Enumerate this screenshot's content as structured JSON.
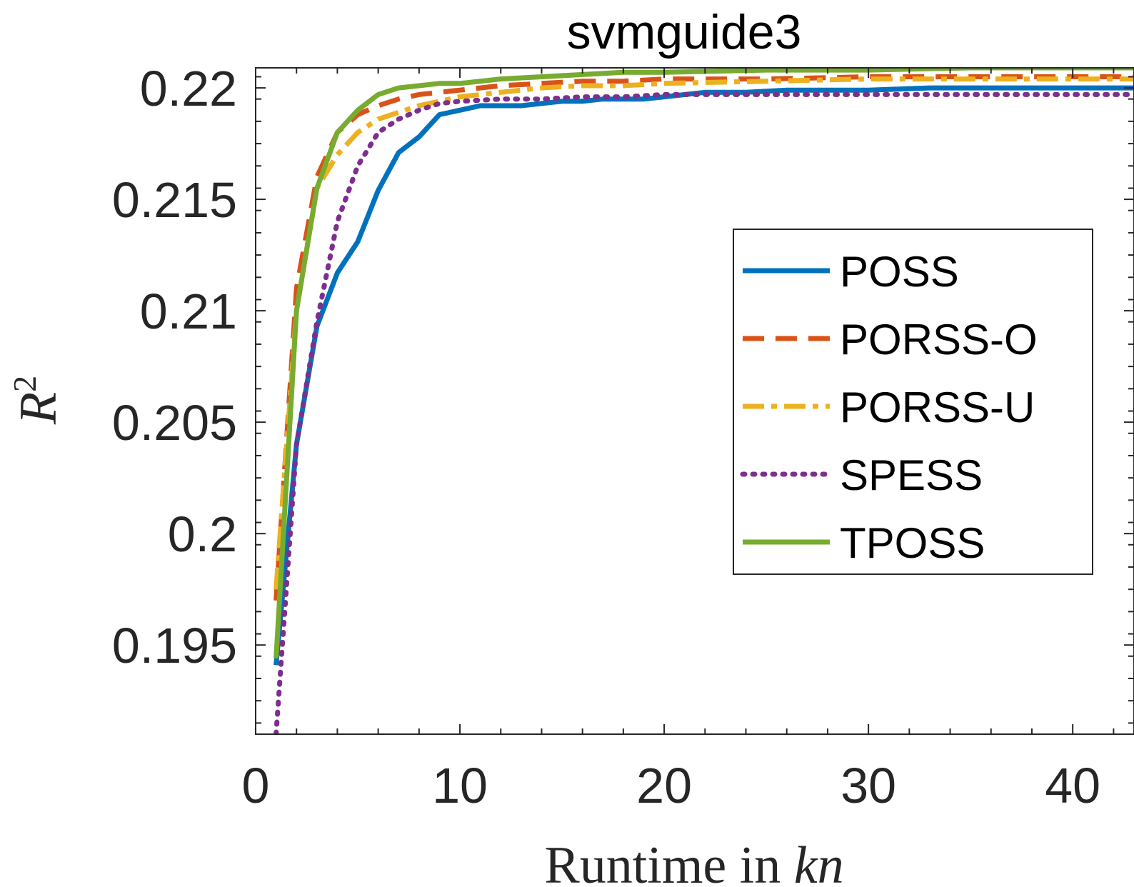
{
  "chart_data": {
    "type": "line",
    "title": "svmguide3",
    "xlabel": "Runtime in kn",
    "xlabel_plain": "Runtime in ",
    "xlabel_italic": "kn",
    "ylabel_base": "R",
    "ylabel_sup": "2",
    "xlim": [
      0,
      43
    ],
    "ylim": [
      0.191,
      0.2209
    ],
    "xticks": [
      0,
      10,
      20,
      30,
      40
    ],
    "xtick_labels": [
      "0",
      "10",
      "20",
      "30",
      "40"
    ],
    "yticks": [
      0.195,
      0.2,
      0.205,
      0.21,
      0.215,
      0.22
    ],
    "ytick_labels": [
      "0.195",
      "0.2",
      "0.205",
      "0.21",
      "0.215",
      "0.22"
    ],
    "grid": false,
    "legend_position": "right",
    "series": [
      {
        "name": "POSS",
        "color": "#0072BD",
        "dash": "solid",
        "x": [
          1,
          2,
          3,
          4,
          5,
          6,
          7,
          8,
          9,
          10,
          11,
          12,
          13,
          14,
          15,
          16,
          17,
          18,
          19,
          20,
          22,
          24,
          26,
          28,
          30,
          33,
          36,
          40,
          43
        ],
        "y": [
          0.1941,
          0.204,
          0.2093,
          0.2117,
          0.2131,
          0.2154,
          0.2171,
          0.2178,
          0.2188,
          0.219,
          0.2192,
          0.2192,
          0.2192,
          0.2193,
          0.2194,
          0.2194,
          0.2195,
          0.2195,
          0.2195,
          0.2196,
          0.2198,
          0.2198,
          0.2199,
          0.2199,
          0.2199,
          0.22,
          0.22,
          0.22,
          0.22
        ]
      },
      {
        "name": "PORSS-O",
        "color": "#D95319",
        "dash": "dash",
        "x": [
          1,
          2,
          3,
          4,
          5,
          6,
          7,
          8,
          9,
          10,
          12,
          14,
          16,
          18,
          20,
          25,
          30,
          35,
          40,
          43
        ],
        "y": [
          0.197,
          0.211,
          0.216,
          0.218,
          0.2188,
          0.2192,
          0.2195,
          0.2197,
          0.2198,
          0.2199,
          0.2201,
          0.2202,
          0.2203,
          0.2203,
          0.2204,
          0.2204,
          0.2205,
          0.2205,
          0.2205,
          0.2205
        ]
      },
      {
        "name": "PORSS-U",
        "color": "#EDB120",
        "dash": "dashdot",
        "x": [
          1,
          2,
          3,
          4,
          5,
          6,
          7,
          8,
          9,
          10,
          12,
          14,
          16,
          18,
          20,
          25,
          30,
          35,
          40,
          43
        ],
        "y": [
          0.1975,
          0.21,
          0.2155,
          0.217,
          0.218,
          0.2186,
          0.2189,
          0.2192,
          0.2194,
          0.2196,
          0.2198,
          0.22,
          0.2201,
          0.2201,
          0.2202,
          0.2203,
          0.2204,
          0.2204,
          0.2204,
          0.2204
        ]
      },
      {
        "name": "SPESS",
        "color": "#7E2F8E",
        "dash": "dot",
        "x": [
          1,
          2,
          3,
          4,
          5,
          6,
          7,
          8,
          9,
          10,
          12,
          14,
          16,
          18,
          20,
          25,
          30,
          35,
          40,
          43
        ],
        "y": [
          0.191,
          0.204,
          0.2095,
          0.214,
          0.2165,
          0.218,
          0.2186,
          0.219,
          0.2193,
          0.2194,
          0.2195,
          0.2195,
          0.2196,
          0.2196,
          0.2197,
          0.2197,
          0.2197,
          0.2197,
          0.2197,
          0.2197
        ]
      },
      {
        "name": "TPOSS",
        "color": "#77AC30",
        "dash": "solid",
        "x": [
          1,
          2,
          3,
          4,
          5,
          6,
          7,
          8,
          9,
          10,
          12,
          14,
          16,
          18,
          20,
          25,
          30,
          35,
          40,
          43
        ],
        "y": [
          0.1944,
          0.21,
          0.2155,
          0.218,
          0.219,
          0.2197,
          0.22,
          0.2201,
          0.2202,
          0.2202,
          0.2204,
          0.2205,
          0.2206,
          0.2207,
          0.2207,
          0.2208,
          0.2208,
          0.2209,
          0.2209,
          0.2209
        ]
      }
    ]
  }
}
